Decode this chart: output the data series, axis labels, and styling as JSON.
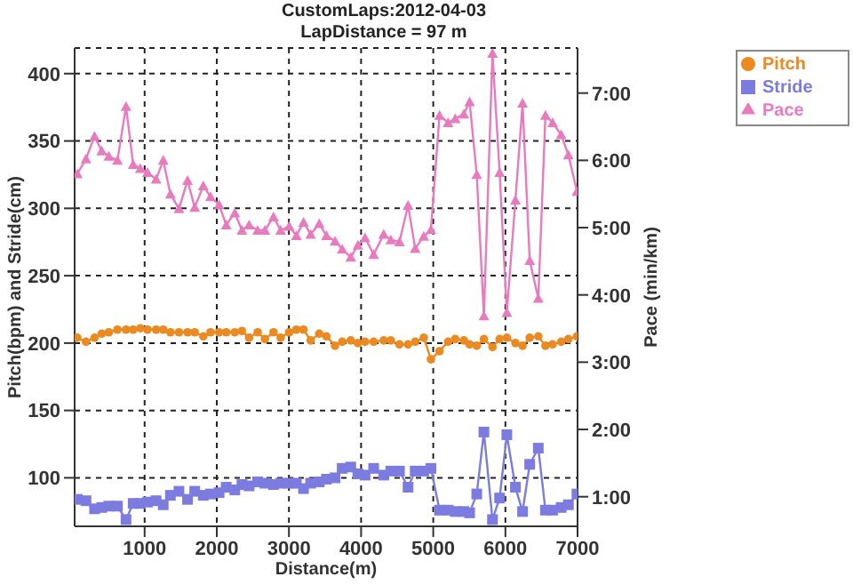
{
  "chart_data": {
    "type": "line",
    "title": "CustomLaps:2012-04-03",
    "subtitle": "LapDistance = 97 m",
    "xlabel": "Distance(m)",
    "ylabel": "Pitch(bpm) and Stride(cm)",
    "y2label": "Pace (min/km)",
    "x": [
      67,
      187,
      306,
      405,
      504,
      623,
      742,
      841,
      940,
      1040,
      1159,
      1258,
      1357,
      1476,
      1595,
      1694,
      1813,
      1913,
      2032,
      2131,
      2250,
      2349,
      2448,
      2567,
      2667,
      2786,
      2885,
      3004,
      3103,
      3202,
      3301,
      3420,
      3520,
      3639,
      3738,
      3857,
      3956,
      4055,
      4174,
      4313,
      4412,
      4532,
      4651,
      4750,
      4869,
      4968,
      5087,
      5206,
      5305,
      5424,
      5504,
      5603,
      5702,
      5821,
      5920,
      6020,
      6139,
      6238,
      6337,
      6456,
      6555,
      6654,
      6773,
      6873,
      6992
    ],
    "series": [
      {
        "name": "Pitch",
        "color": "#ec8a22",
        "marker": "circle",
        "values": [
          204,
          201,
          204,
          207,
          208,
          210,
          210,
          210,
          211,
          210,
          210,
          210,
          208,
          208,
          208,
          208,
          205,
          208,
          208,
          208,
          208,
          209,
          204,
          208,
          203,
          208,
          204,
          208,
          210,
          210,
          202,
          207,
          205,
          198,
          201,
          202,
          200,
          201,
          201,
          202,
          202,
          199,
          199,
          201,
          204,
          188,
          194,
          201,
          203,
          202,
          199,
          198,
          203,
          197,
          203,
          204,
          200,
          198,
          204,
          205,
          198,
          199,
          201,
          203,
          205
        ]
      },
      {
        "name": "Stride",
        "color": "#7b7be0",
        "marker": "square",
        "values": [
          84,
          83,
          77,
          78,
          79,
          79,
          69,
          81,
          81,
          82,
          83,
          80,
          87,
          90,
          84,
          90,
          87,
          88,
          89,
          93,
          91,
          95,
          94,
          97,
          96,
          95,
          96,
          96,
          96,
          92,
          96,
          97,
          99,
          100,
          107,
          108,
          103,
          102,
          107,
          102,
          105,
          105,
          93,
          105,
          105,
          107,
          76,
          76,
          75,
          75,
          74,
          88,
          134,
          69,
          85,
          132,
          93,
          75,
          110,
          122,
          76,
          76,
          78,
          80,
          88
        ]
      },
      {
        "name": "Pace",
        "color": "#e87ac0",
        "marker": "triangle",
        "axis": "y2",
        "values": [
          5.8,
          6.02,
          6.36,
          6.14,
          6.06,
          6.0,
          6.8,
          5.94,
          5.88,
          5.82,
          5.72,
          6.0,
          5.5,
          5.28,
          5.7,
          5.3,
          5.62,
          5.46,
          5.34,
          5.04,
          5.22,
          4.96,
          5.04,
          4.96,
          4.96,
          5.16,
          4.96,
          5.02,
          4.88,
          5.08,
          4.9,
          5.06,
          4.88,
          4.8,
          4.68,
          4.56,
          4.74,
          4.85,
          4.6,
          4.9,
          4.82,
          4.79,
          5.33,
          4.69,
          4.87,
          4.97,
          6.67,
          6.56,
          6.62,
          6.69,
          6.87,
          5.79,
          3.69,
          7.59,
          5.82,
          3.74,
          5.41,
          6.85,
          4.51,
          3.95,
          6.67,
          6.56,
          6.38,
          6.08,
          5.54
        ]
      }
    ],
    "xlim": [
      30,
      7000
    ],
    "xticks": [
      1000,
      2000,
      3000,
      4000,
      5000,
      6000,
      7000
    ],
    "ylim": [
      64,
      419
    ],
    "yticks": [
      100,
      150,
      200,
      250,
      300,
      350,
      400
    ],
    "y2lim": [
      0.56,
      7.67
    ],
    "y2ticks": [
      {
        "value": 1,
        "label": "1:00"
      },
      {
        "value": 2,
        "label": "2:00"
      },
      {
        "value": 3,
        "label": "3:00"
      },
      {
        "value": 4,
        "label": "4:00"
      },
      {
        "value": 5,
        "label": "5:00"
      },
      {
        "value": 6,
        "label": "6:00"
      },
      {
        "value": 7,
        "label": "7:00"
      }
    ],
    "grid": true,
    "legend": "top right",
    "line_style": "solid"
  }
}
